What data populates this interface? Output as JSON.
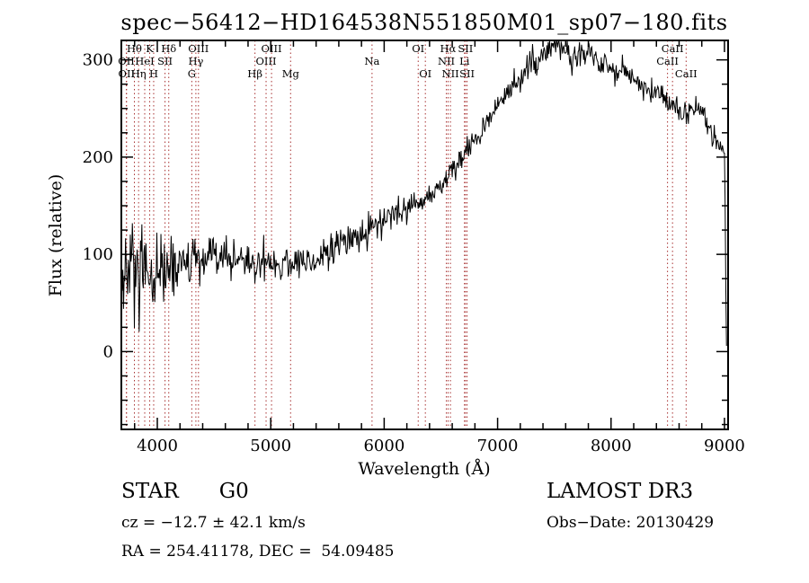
{
  "title": "spec−56412−HD164538N551850M01_sp07−180.fits",
  "annotations": {
    "object_type": "STAR",
    "subclass": "G0",
    "survey": "LAMOST DR3",
    "cz": "cz = −12.7 ± 42.1 km/s",
    "obs_date": "Obs−Date: 20130429",
    "ra_dec": "RA = 254.41178, DEC =  54.09485"
  },
  "chart_data": {
    "type": "line",
    "title": "spec−56412−HD164538N551850M01_sp07−180.fits",
    "xlabel": "Wavelength (Å)",
    "ylabel": "Flux (relative)",
    "xlim": [
      3683,
      9032
    ],
    "ylim": [
      -80,
      320
    ],
    "xticks": [
      4000,
      5000,
      6000,
      7000,
      8000,
      9000
    ],
    "yticks": [
      0,
      100,
      200,
      300
    ],
    "x_minor_step": 200,
    "y_minor_step": 25,
    "grid": false,
    "legend": "none",
    "colors": {
      "trace": "#000000",
      "line_markers": "#a83232",
      "axis": "#000000"
    },
    "sampling": {
      "start": 3690,
      "end": 9018,
      "step": 6,
      "seed": 12345
    },
    "continuum": {
      "wavelength": [
        3690,
        3730,
        3800,
        3850,
        3933,
        3968,
        4000,
        4101,
        4200,
        4340,
        4500,
        4700,
        4861,
        5000,
        5175,
        5300,
        5450,
        5600,
        5750,
        5893,
        6000,
        6150,
        6300,
        6450,
        6563,
        6700,
        6850,
        7000,
        7150,
        7300,
        7450,
        7550,
        7650,
        7750,
        7850,
        7950,
        8050,
        8150,
        8250,
        8350,
        8450,
        8550,
        8650,
        8750,
        8800,
        8850,
        8900,
        8950,
        9000,
        9006,
        9012,
        9018
      ],
      "flux": [
        65,
        75,
        78,
        72,
        65,
        70,
        82,
        85,
        90,
        90,
        95,
        96,
        90,
        92,
        90,
        93,
        97,
        108,
        118,
        126,
        135,
        143,
        153,
        165,
        180,
        200,
        225,
        255,
        275,
        295,
        310,
        313,
        300,
        312,
        303,
        296,
        290,
        284,
        276,
        268,
        260,
        252,
        245,
        245,
        250,
        235,
        222,
        212,
        205,
        150,
        60,
        8
      ]
    },
    "noise_sigma": {
      "wavelength": [
        3690,
        3750,
        3820,
        3900,
        4000,
        4150,
        4300,
        4600,
        5000,
        5400,
        5800,
        6200,
        6600,
        7000,
        7400,
        7800,
        8200,
        8600,
        8900,
        9018
      ],
      "sigma": [
        35,
        40,
        34,
        28,
        22,
        15,
        12,
        10,
        10,
        9,
        8,
        7,
        6,
        6,
        7,
        7,
        6,
        7,
        7,
        5
      ]
    },
    "spectral_lines": [
      {
        "label": "OII",
        "wavelength": 3727,
        "row": 1
      },
      {
        "label": "OII",
        "wavelength": 3729,
        "row": 2
      },
      {
        "label": "Hθ",
        "wavelength": 3798,
        "row": 0
      },
      {
        "label": "Hη",
        "wavelength": 3835,
        "row": 2
      },
      {
        "label": "HeI",
        "wavelength": 3889,
        "row": 1
      },
      {
        "label": "K",
        "wavelength": 3933,
        "row": 0
      },
      {
        "label": "H",
        "wavelength": 3968,
        "row": 2
      },
      {
        "label": "SII",
        "wavelength": 4068,
        "row": 1
      },
      {
        "label": "Hδ",
        "wavelength": 4101,
        "row": 0
      },
      {
        "label": "G",
        "wavelength": 4304,
        "row": 2
      },
      {
        "label": "Hγ",
        "wavelength": 4340,
        "row": 1
      },
      {
        "label": "OIII",
        "wavelength": 4363,
        "row": 0
      },
      {
        "label": "Hβ",
        "wavelength": 4861,
        "row": 2
      },
      {
        "label": "OIII",
        "wavelength": 4959,
        "row": 1
      },
      {
        "label": "OIII",
        "wavelength": 5007,
        "row": 0
      },
      {
        "label": "Mg",
        "wavelength": 5175,
        "row": 2
      },
      {
        "label": "Na",
        "wavelength": 5893,
        "row": 1
      },
      {
        "label": "OI",
        "wavelength": 6300,
        "row": 0
      },
      {
        "label": "OI",
        "wavelength": 6363,
        "row": 2
      },
      {
        "label": "NII",
        "wavelength": 6548,
        "row": 1
      },
      {
        "label": "Hα",
        "wavelength": 6563,
        "row": 0
      },
      {
        "label": "NII",
        "wavelength": 6584,
        "row": 2
      },
      {
        "label": "Li",
        "wavelength": 6708,
        "row": 1
      },
      {
        "label": "SII",
        "wavelength": 6717,
        "row": 0
      },
      {
        "label": "SII",
        "wavelength": 6731,
        "row": 2
      },
      {
        "label": "CaII",
        "wavelength": 8498,
        "row": 1
      },
      {
        "label": "CaII",
        "wavelength": 8542,
        "row": 0
      },
      {
        "label": "CaII",
        "wavelength": 8662,
        "row": 2
      }
    ]
  }
}
